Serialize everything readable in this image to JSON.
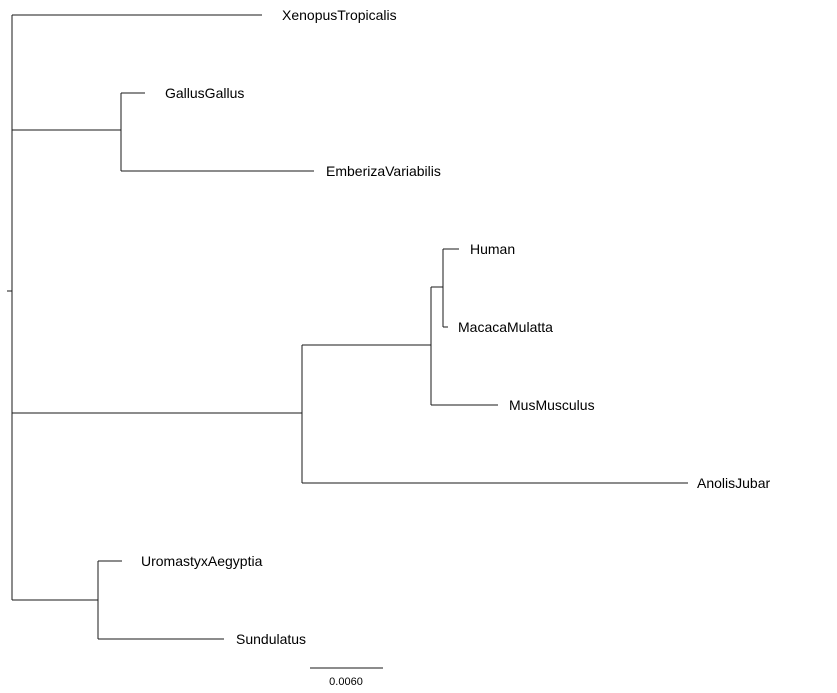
{
  "tree": {
    "leaves": [
      {
        "id": "xenopus",
        "label": "XenopusTropicalis"
      },
      {
        "id": "gallus",
        "label": "GallusGallus"
      },
      {
        "id": "emberiza",
        "label": "EmberizaVariabilis"
      },
      {
        "id": "human",
        "label": "Human"
      },
      {
        "id": "macaca",
        "label": "MacacaMulatta"
      },
      {
        "id": "mus",
        "label": "MusMusculus"
      },
      {
        "id": "anolis",
        "label": "AnolisJubar"
      },
      {
        "id": "uromastyx",
        "label": "UromastyxAegyptia"
      },
      {
        "id": "sundulatus",
        "label": "Sundulatus"
      }
    ],
    "scale_bar": {
      "label": "0.0060",
      "length": 0.006
    }
  }
}
